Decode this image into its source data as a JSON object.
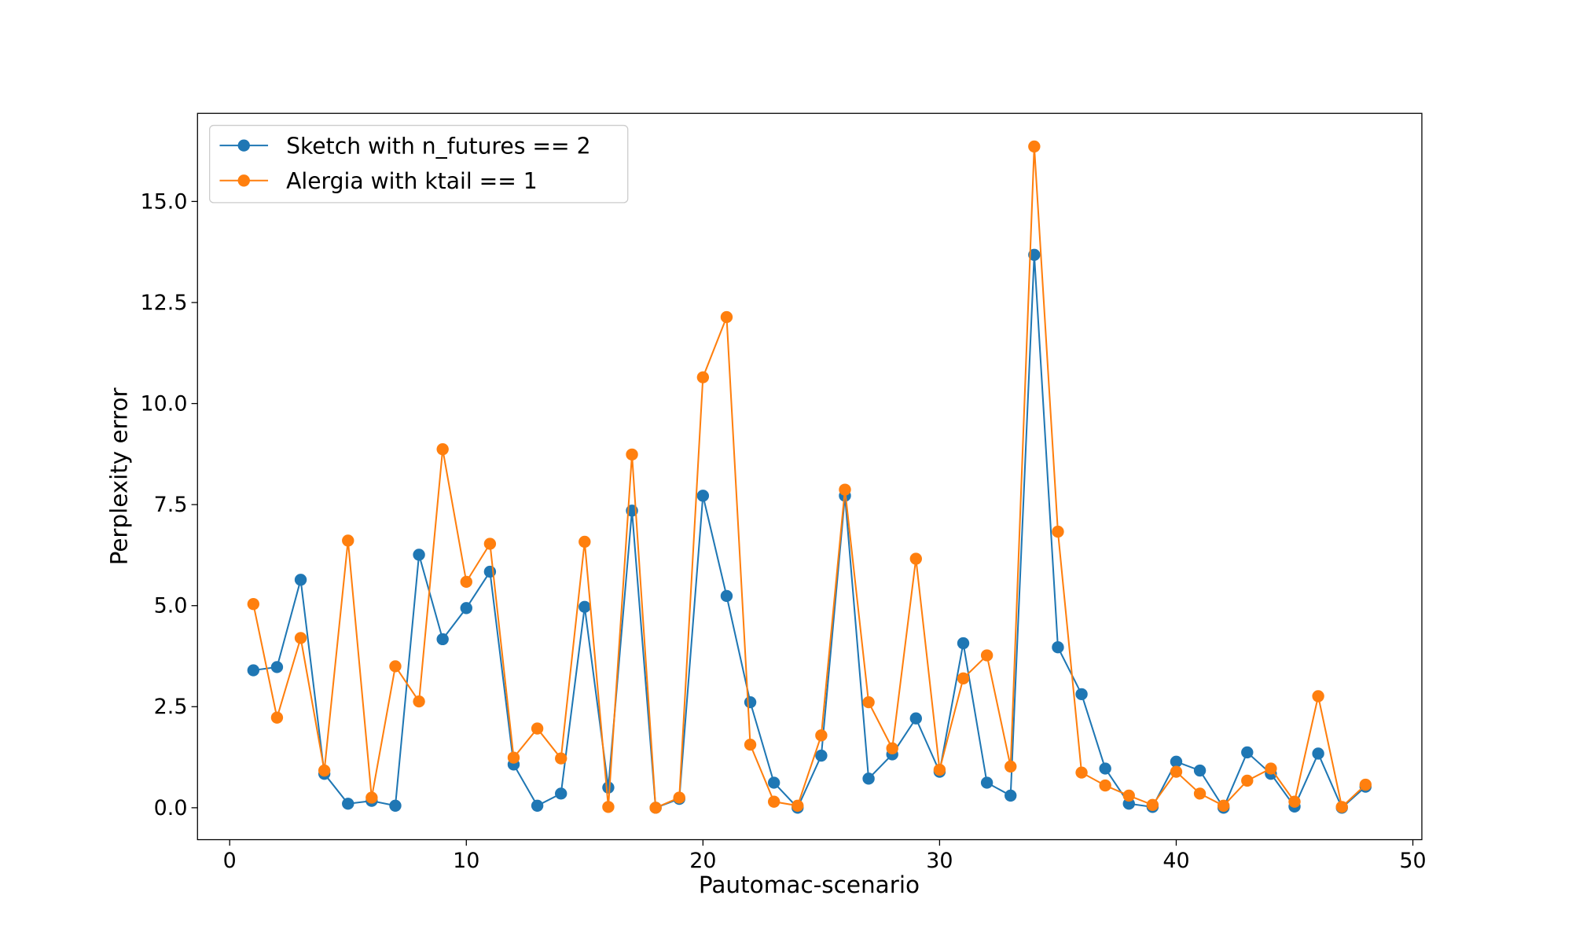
{
  "chart_data": {
    "type": "line",
    "xlabel": "Pautomac-scenario",
    "ylabel": "Perplexity error",
    "xlim": [
      -1.36,
      50.38
    ],
    "ylim": [
      -0.79,
      17.18
    ],
    "xticks": [
      0,
      10,
      20,
      30,
      40,
      50
    ],
    "xtick_labels": [
      "0",
      "10",
      "20",
      "30",
      "40",
      "50"
    ],
    "yticks": [
      0,
      2.5,
      5,
      7.5,
      10,
      12.5,
      15
    ],
    "ytick_labels": [
      "0.0",
      "2.5",
      "5.0",
      "7.5",
      "10.0",
      "12.5",
      "15.0"
    ],
    "grid": false,
    "legend_placement": "top-left",
    "x": [
      1,
      2,
      3,
      4,
      5,
      6,
      7,
      8,
      9,
      10,
      11,
      12,
      13,
      14,
      15,
      16,
      17,
      18,
      19,
      20,
      21,
      22,
      23,
      24,
      25,
      26,
      27,
      28,
      29,
      30,
      31,
      32,
      33,
      34,
      35,
      36,
      37,
      38,
      39,
      40,
      41,
      42,
      43,
      44,
      45,
      46,
      47,
      48
    ],
    "series": [
      {
        "name": "Sketch with n_futures == 2",
        "color": "#1f77b4",
        "values": [
          3.4,
          3.48,
          5.64,
          0.84,
          0.1,
          0.17,
          0.05,
          6.26,
          4.17,
          4.94,
          5.84,
          1.07,
          0.05,
          0.35,
          4.97,
          0.5,
          7.35,
          0.0,
          0.22,
          7.72,
          5.24,
          2.61,
          0.62,
          0.0,
          1.29,
          7.72,
          0.72,
          1.32,
          2.21,
          0.89,
          4.07,
          0.62,
          0.3,
          13.68,
          3.97,
          2.81,
          0.97,
          0.1,
          0.02,
          1.14,
          0.92,
          0.0,
          1.37,
          0.84,
          0.03,
          1.34,
          0.0,
          0.52
        ]
      },
      {
        "name": "Alergia with ktail == 1",
        "color": "#ff7f0e",
        "values": [
          5.04,
          2.23,
          4.2,
          0.92,
          6.61,
          0.25,
          3.5,
          2.63,
          8.87,
          5.59,
          6.53,
          1.24,
          1.96,
          1.22,
          6.58,
          0.02,
          8.74,
          0.0,
          0.25,
          10.65,
          12.14,
          1.56,
          0.15,
          0.05,
          1.79,
          7.87,
          2.61,
          1.47,
          6.16,
          0.94,
          3.2,
          3.77,
          1.02,
          16.36,
          6.83,
          0.87,
          0.55,
          0.3,
          0.07,
          0.89,
          0.35,
          0.05,
          0.67,
          0.97,
          0.15,
          2.76,
          0.02,
          0.57
        ]
      }
    ]
  }
}
